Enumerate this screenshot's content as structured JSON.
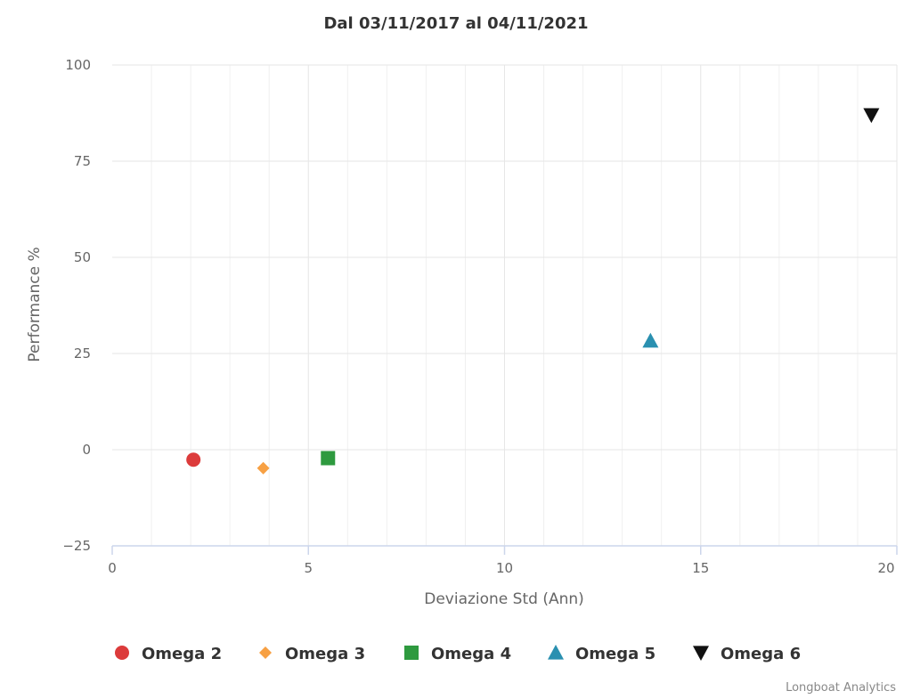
{
  "chart_data": {
    "type": "scatter",
    "title": "Dal 03/11/2017 al 04/11/2021",
    "xlabel": "Deviazione Std (Ann)",
    "ylabel": "Performance %",
    "xlim": [
      0,
      20
    ],
    "ylim": [
      -25,
      100
    ],
    "x_ticks": [
      "0",
      "5",
      "10",
      "15",
      "20"
    ],
    "y_ticks": [
      "100",
      "75",
      "50",
      "25",
      "0",
      "−25"
    ],
    "grid": true,
    "legend_position": "bottom",
    "series": [
      {
        "name": "Omega 2",
        "marker": "circle",
        "color": "#dc3b3b",
        "x": 2.07,
        "y": -2.6
      },
      {
        "name": "Omega 3",
        "marker": "diamond",
        "color": "#f7a043",
        "x": 3.85,
        "y": -4.8
      },
      {
        "name": "Omega 4",
        "marker": "square",
        "color": "#2e9a3f",
        "x": 5.5,
        "y": -2.2
      },
      {
        "name": "Omega 5",
        "marker": "triangle",
        "color": "#2a90b0",
        "x": 13.72,
        "y": 28.3
      },
      {
        "name": "Omega 6",
        "marker": "triangle-down",
        "color": "#111111",
        "x": 19.35,
        "y": 87.0
      }
    ]
  },
  "credits": "Longboat Analytics"
}
